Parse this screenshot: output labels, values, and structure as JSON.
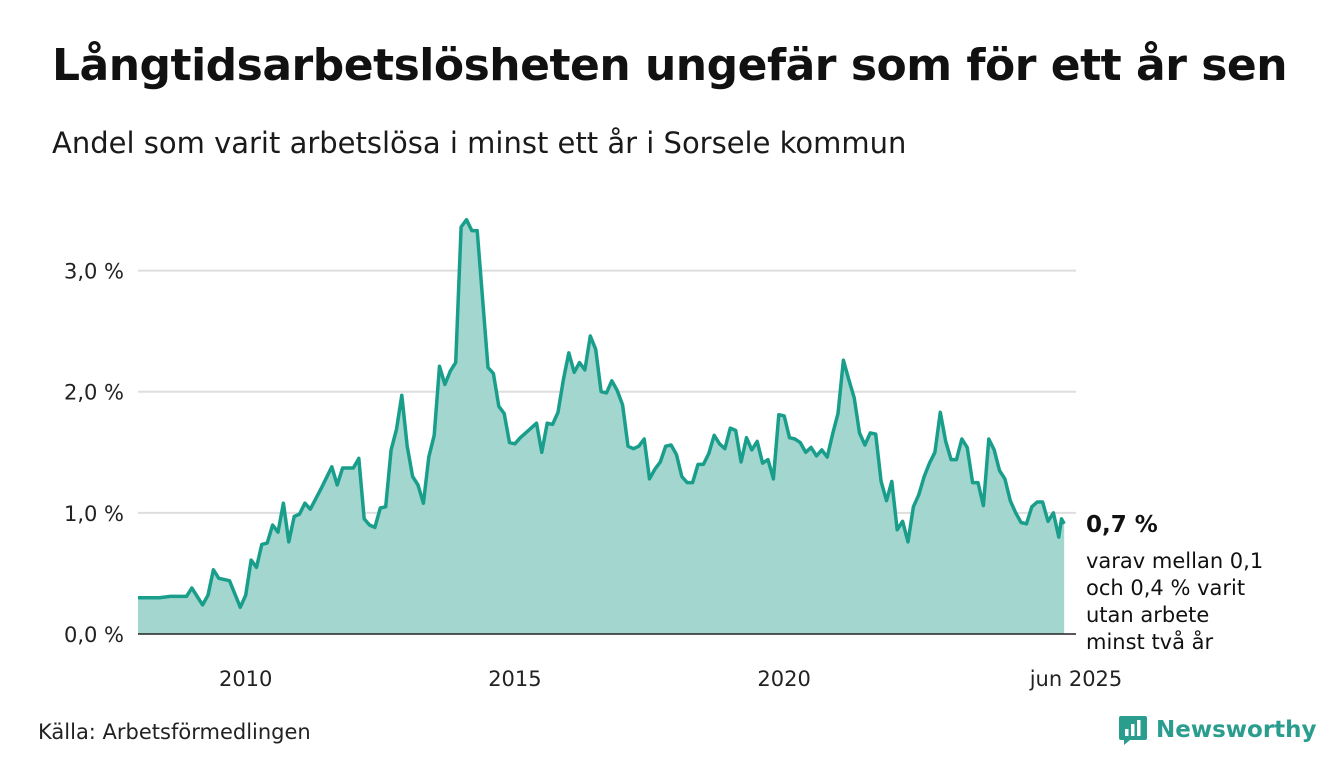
{
  "title": "Långtidsarbetslösheten ungefär som för ett år sen",
  "subtitle": "Andel som varit arbetslösa i minst ett år i Sorsele kommun",
  "source": "Källa: Arbetsförmedlingen",
  "brand": "Newsworthy",
  "colors": {
    "long_term_line": "#1a9e8c",
    "long_term_fill": "#a3d6cf",
    "two_year_fill": "#709e96",
    "two_year_line": "#375a54",
    "two_year_range": "#86bcb3",
    "grid": "#dedede",
    "brand": "#2a9d8f"
  },
  "chart_data": {
    "type": "area",
    "x_unit": "year",
    "ylim": [
      0,
      3.5
    ],
    "y_ticks": [
      0,
      1,
      2,
      3
    ],
    "y_tick_labels": [
      "0,0 %",
      "1,0 %",
      "2,0 %",
      "3,0 %"
    ],
    "x_ticks": [
      2010,
      2015,
      2020,
      2025.42
    ],
    "x_tick_labels": [
      "2010",
      "2015",
      "2020",
      "jun 2025"
    ],
    "grid": "horizontal",
    "end_label": "0,7 %",
    "end_note": [
      "varav mellan 0,1",
      "och 0,4 % varit",
      "utan arbete",
      "minst två år"
    ],
    "series": [
      {
        "id": "long_term",
        "points": [
          [
            2008.0,
            0.3
          ],
          [
            2008.4,
            0.3
          ],
          [
            2008.6,
            0.31
          ],
          [
            2008.9,
            0.31
          ],
          [
            2009.0,
            0.38
          ],
          [
            2009.2,
            0.24
          ],
          [
            2009.3,
            0.32
          ],
          [
            2009.4,
            0.53
          ],
          [
            2009.5,
            0.46
          ],
          [
            2009.7,
            0.44
          ],
          [
            2009.9,
            0.22
          ],
          [
            2010.0,
            0.32
          ],
          [
            2010.1,
            0.61
          ],
          [
            2010.2,
            0.55
          ],
          [
            2010.3,
            0.74
          ],
          [
            2010.4,
            0.75
          ],
          [
            2010.5,
            0.9
          ],
          [
            2010.6,
            0.84
          ],
          [
            2010.7,
            1.08
          ],
          [
            2010.8,
            0.76
          ],
          [
            2010.9,
            0.97
          ],
          [
            2011.0,
            0.99
          ],
          [
            2011.1,
            1.08
          ],
          [
            2011.2,
            1.03
          ],
          [
            2011.4,
            1.2
          ],
          [
            2011.6,
            1.38
          ],
          [
            2011.7,
            1.23
          ],
          [
            2011.8,
            1.37
          ],
          [
            2012.0,
            1.37
          ],
          [
            2012.1,
            1.45
          ],
          [
            2012.2,
            0.95
          ],
          [
            2012.3,
            0.9
          ],
          [
            2012.4,
            0.88
          ],
          [
            2012.5,
            1.04
          ],
          [
            2012.6,
            1.05
          ],
          [
            2012.7,
            1.52
          ],
          [
            2012.8,
            1.69
          ],
          [
            2012.9,
            1.97
          ],
          [
            2013.0,
            1.55
          ],
          [
            2013.1,
            1.3
          ],
          [
            2013.2,
            1.23
          ],
          [
            2013.3,
            1.08
          ],
          [
            2013.4,
            1.46
          ],
          [
            2013.5,
            1.64
          ],
          [
            2013.6,
            2.21
          ],
          [
            2013.7,
            2.06
          ],
          [
            2013.8,
            2.17
          ],
          [
            2013.9,
            2.24
          ],
          [
            2014.0,
            3.36
          ],
          [
            2014.1,
            3.42
          ],
          [
            2014.2,
            3.33
          ],
          [
            2014.3,
            3.33
          ],
          [
            2014.5,
            2.2
          ],
          [
            2014.6,
            2.15
          ],
          [
            2014.7,
            1.88
          ],
          [
            2014.8,
            1.82
          ],
          [
            2014.9,
            1.58
          ],
          [
            2015.0,
            1.57
          ],
          [
            2015.1,
            1.62
          ],
          [
            2015.2,
            1.66
          ],
          [
            2015.3,
            1.7
          ],
          [
            2015.4,
            1.74
          ],
          [
            2015.5,
            1.5
          ],
          [
            2015.6,
            1.74
          ],
          [
            2015.7,
            1.73
          ],
          [
            2015.8,
            1.83
          ],
          [
            2015.9,
            2.1
          ],
          [
            2016.0,
            2.32
          ],
          [
            2016.1,
            2.16
          ],
          [
            2016.2,
            2.24
          ],
          [
            2016.3,
            2.18
          ],
          [
            2016.4,
            2.46
          ],
          [
            2016.5,
            2.35
          ],
          [
            2016.6,
            2.0
          ],
          [
            2016.7,
            1.99
          ],
          [
            2016.8,
            2.09
          ],
          [
            2016.9,
            2.01
          ],
          [
            2017.0,
            1.89
          ],
          [
            2017.1,
            1.55
          ],
          [
            2017.2,
            1.53
          ],
          [
            2017.3,
            1.55
          ],
          [
            2017.4,
            1.61
          ],
          [
            2017.5,
            1.28
          ],
          [
            2017.6,
            1.36
          ],
          [
            2017.7,
            1.42
          ],
          [
            2017.8,
            1.55
          ],
          [
            2017.9,
            1.56
          ],
          [
            2018.0,
            1.48
          ],
          [
            2018.1,
            1.3
          ],
          [
            2018.2,
            1.25
          ],
          [
            2018.3,
            1.25
          ],
          [
            2018.4,
            1.4
          ],
          [
            2018.5,
            1.4
          ],
          [
            2018.6,
            1.49
          ],
          [
            2018.7,
            1.64
          ],
          [
            2018.8,
            1.57
          ],
          [
            2018.9,
            1.53
          ],
          [
            2019.0,
            1.7
          ],
          [
            2019.1,
            1.68
          ],
          [
            2019.2,
            1.42
          ],
          [
            2019.3,
            1.62
          ],
          [
            2019.4,
            1.52
          ],
          [
            2019.5,
            1.59
          ],
          [
            2019.6,
            1.41
          ],
          [
            2019.7,
            1.44
          ],
          [
            2019.8,
            1.28
          ],
          [
            2019.9,
            1.81
          ],
          [
            2020.0,
            1.8
          ],
          [
            2020.1,
            1.62
          ],
          [
            2020.2,
            1.61
          ],
          [
            2020.3,
            1.58
          ],
          [
            2020.4,
            1.5
          ],
          [
            2020.5,
            1.54
          ],
          [
            2020.6,
            1.47
          ],
          [
            2020.7,
            1.52
          ],
          [
            2020.8,
            1.46
          ],
          [
            2020.9,
            1.65
          ],
          [
            2021.0,
            1.82
          ],
          [
            2021.1,
            2.26
          ],
          [
            2021.2,
            2.1
          ],
          [
            2021.3,
            1.95
          ],
          [
            2021.4,
            1.66
          ],
          [
            2021.5,
            1.56
          ],
          [
            2021.6,
            1.66
          ],
          [
            2021.7,
            1.65
          ],
          [
            2021.8,
            1.26
          ],
          [
            2021.9,
            1.1
          ],
          [
            2022.0,
            1.26
          ],
          [
            2022.1,
            0.86
          ],
          [
            2022.2,
            0.93
          ],
          [
            2022.3,
            0.76
          ],
          [
            2022.4,
            1.05
          ],
          [
            2022.5,
            1.15
          ],
          [
            2022.6,
            1.3
          ],
          [
            2022.7,
            1.41
          ],
          [
            2022.8,
            1.5
          ],
          [
            2022.9,
            1.83
          ],
          [
            2023.0,
            1.59
          ],
          [
            2023.1,
            1.44
          ],
          [
            2023.2,
            1.44
          ],
          [
            2023.3,
            1.61
          ],
          [
            2023.4,
            1.54
          ],
          [
            2023.5,
            1.25
          ],
          [
            2023.6,
            1.25
          ],
          [
            2023.7,
            1.06
          ],
          [
            2023.8,
            1.61
          ],
          [
            2023.9,
            1.52
          ],
          [
            2024.0,
            1.35
          ],
          [
            2024.1,
            1.28
          ],
          [
            2024.2,
            1.1
          ],
          [
            2024.3,
            1.0
          ],
          [
            2024.4,
            0.92
          ],
          [
            2024.5,
            0.91
          ],
          [
            2024.6,
            1.05
          ],
          [
            2024.7,
            1.09
          ],
          [
            2024.8,
            1.09
          ],
          [
            2024.9,
            0.93
          ],
          [
            2025.0,
            1.0
          ],
          [
            2025.1,
            0.8
          ],
          [
            2025.15,
            0.95
          ],
          [
            2025.2,
            0.91
          ]
        ]
      }
    ]
  }
}
